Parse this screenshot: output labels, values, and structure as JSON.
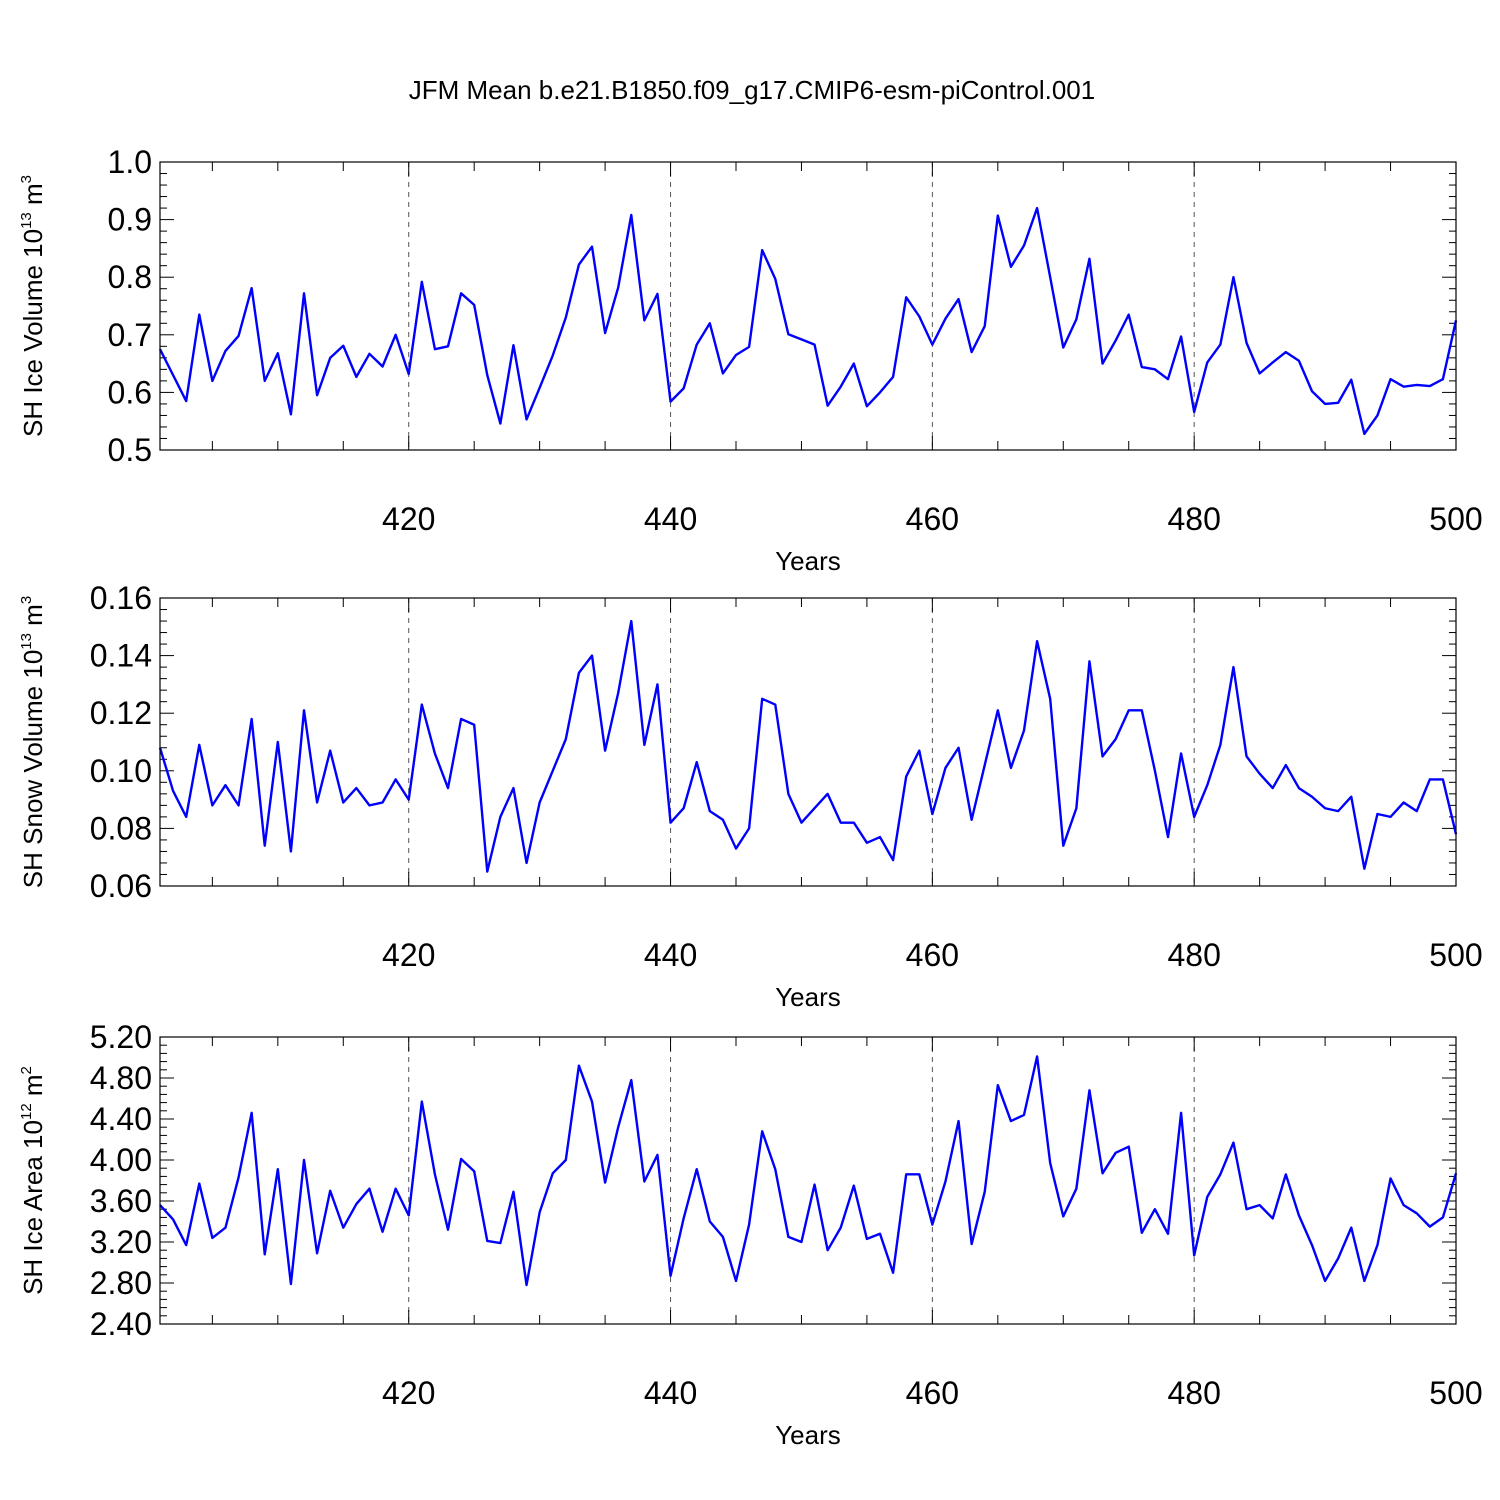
{
  "figure": {
    "title": "JFM Mean b.e21.B1850.f09_g17.CMIP6-esm-piControl.001"
  },
  "chart_data": [
    {
      "type": "line",
      "xlabel": "Years",
      "ylabel_main": "SH Ice Volume 10",
      "ylabel_exp": "13",
      "ylabel_unit": " m",
      "ylabel_unit_exp": "3",
      "xlim": [
        401,
        500
      ],
      "ylim": [
        0.5,
        1.0
      ],
      "x_ticks": [
        420,
        440,
        460,
        480,
        500
      ],
      "y_ticks": [
        "0.5",
        "0.6",
        "0.7",
        "0.8",
        "0.9",
        "1.0"
      ],
      "line_color": "#0000ff",
      "grid": "dashed vertical at major x ticks",
      "series": [
        {
          "x_start": 401,
          "values": [
            0.675,
            0.63,
            0.585,
            0.735,
            0.62,
            0.672,
            0.698,
            0.781,
            0.62,
            0.668,
            0.562,
            0.772,
            0.595,
            0.66,
            0.681,
            0.627,
            0.667,
            0.645,
            0.7,
            0.632,
            0.792,
            0.675,
            0.68,
            0.772,
            0.752,
            0.63,
            0.546,
            0.682,
            0.553,
            0.608,
            0.664,
            0.73,
            0.822,
            0.853,
            0.703,
            0.782,
            0.908,
            0.725,
            0.771,
            0.584,
            0.607,
            0.683,
            0.72,
            0.633,
            0.665,
            0.679,
            0.847,
            0.797,
            0.701,
            0.692,
            0.683,
            0.577,
            0.61,
            0.65,
            0.576,
            0.6,
            0.627,
            0.765,
            0.732,
            0.683,
            0.728,
            0.762,
            0.67,
            0.715,
            0.907,
            0.818,
            0.855,
            0.92,
            0.8,
            0.678,
            0.727,
            0.832,
            0.65,
            0.69,
            0.735,
            0.644,
            0.64,
            0.623,
            0.697,
            0.566,
            0.652,
            0.683,
            0.8,
            0.686,
            0.633,
            0.652,
            0.67,
            0.655,
            0.602,
            0.58,
            0.582,
            0.622,
            0.528,
            0.56,
            0.623,
            0.61,
            0.613,
            0.611,
            0.623,
            0.725
          ]
        }
      ]
    },
    {
      "type": "line",
      "xlabel": "Years",
      "ylabel_main": "SH Snow Volume 10",
      "ylabel_exp": "13",
      "ylabel_unit": " m",
      "ylabel_unit_exp": "3",
      "xlim": [
        401,
        500
      ],
      "ylim": [
        0.06,
        0.16
      ],
      "x_ticks": [
        420,
        440,
        460,
        480,
        500
      ],
      "y_ticks": [
        "0.06",
        "0.08",
        "0.10",
        "0.12",
        "0.14",
        "0.16"
      ],
      "line_color": "#0000ff",
      "grid": "dashed vertical at major x ticks",
      "series": [
        {
          "x_start": 401,
          "values": [
            0.108,
            0.093,
            0.084,
            0.109,
            0.088,
            0.095,
            0.088,
            0.118,
            0.074,
            0.11,
            0.072,
            0.121,
            0.089,
            0.107,
            0.089,
            0.094,
            0.088,
            0.089,
            0.097,
            0.09,
            0.123,
            0.106,
            0.094,
            0.118,
            0.116,
            0.065,
            0.084,
            0.094,
            0.068,
            0.089,
            0.1,
            0.111,
            0.134,
            0.14,
            0.107,
            0.127,
            0.152,
            0.109,
            0.13,
            0.082,
            0.087,
            0.103,
            0.086,
            0.083,
            0.073,
            0.08,
            0.125,
            0.123,
            0.092,
            0.082,
            0.087,
            0.092,
            0.082,
            0.082,
            0.075,
            0.077,
            0.069,
            0.098,
            0.107,
            0.085,
            0.101,
            0.108,
            0.083,
            0.102,
            0.121,
            0.101,
            0.114,
            0.145,
            0.125,
            0.074,
            0.087,
            0.138,
            0.105,
            0.111,
            0.121,
            0.121,
            0.1,
            0.077,
            0.106,
            0.084,
            0.095,
            0.109,
            0.136,
            0.105,
            0.099,
            0.094,
            0.102,
            0.094,
            0.091,
            0.087,
            0.086,
            0.091,
            0.066,
            0.085,
            0.084,
            0.089,
            0.086,
            0.097,
            0.097,
            0.078
          ]
        }
      ]
    },
    {
      "type": "line",
      "xlabel": "Years",
      "ylabel_main": "SH Ice Area 10",
      "ylabel_exp": "12",
      "ylabel_unit": " m",
      "ylabel_unit_exp": "2",
      "xlim": [
        401,
        500
      ],
      "ylim": [
        2.4,
        5.2
      ],
      "x_ticks": [
        420,
        440,
        460,
        480,
        500
      ],
      "y_ticks": [
        "2.40",
        "2.80",
        "3.20",
        "3.60",
        "4.00",
        "4.40",
        "4.80",
        "5.20"
      ],
      "line_color": "#0000ff",
      "grid": "dashed vertical at major x ticks",
      "series": [
        {
          "x_start": 401,
          "values": [
            3.56,
            3.42,
            3.17,
            3.77,
            3.24,
            3.34,
            3.83,
            4.46,
            3.08,
            3.91,
            2.79,
            4.0,
            3.09,
            3.7,
            3.34,
            3.57,
            3.72,
            3.3,
            3.72,
            3.46,
            4.57,
            3.86,
            3.32,
            4.01,
            3.89,
            3.21,
            3.19,
            3.69,
            2.78,
            3.49,
            3.87,
            4.0,
            4.92,
            4.57,
            3.78,
            4.32,
            4.78,
            3.79,
            4.05,
            2.87,
            3.43,
            3.91,
            3.4,
            3.25,
            2.82,
            3.37,
            4.28,
            3.91,
            3.25,
            3.2,
            3.76,
            3.12,
            3.34,
            3.75,
            3.23,
            3.28,
            2.9,
            3.86,
            3.86,
            3.37,
            3.79,
            4.38,
            3.18,
            3.69,
            4.73,
            4.38,
            4.44,
            5.01,
            3.97,
            3.45,
            3.72,
            4.68,
            3.87,
            4.07,
            4.13,
            3.29,
            3.52,
            3.28,
            4.46,
            3.07,
            3.64,
            3.86,
            4.17,
            3.52,
            3.56,
            3.43,
            3.86,
            3.46,
            3.17,
            2.82,
            3.04,
            3.34,
            2.82,
            3.17,
            3.82,
            3.56,
            3.48,
            3.35,
            3.44,
            3.87
          ]
        }
      ]
    }
  ]
}
